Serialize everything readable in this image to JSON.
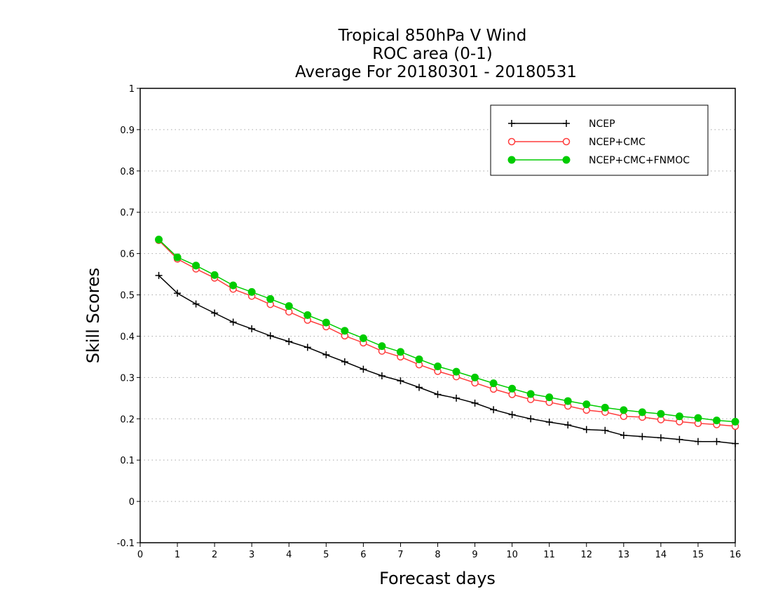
{
  "chart_data": {
    "type": "line",
    "title": [
      "Tropical 850hPa V Wind",
      "ROC area (0-1)",
      "Average For 20180301 - 20180531"
    ],
    "xlabel": "Forecast days",
    "ylabel": "Skill Scores",
    "xlim": [
      0,
      16
    ],
    "ylim": [
      -0.1,
      1
    ],
    "xticks": [
      0,
      1,
      2,
      3,
      4,
      5,
      6,
      7,
      8,
      9,
      10,
      11,
      12,
      13,
      14,
      15,
      16
    ],
    "yticks": [
      -0.1,
      0,
      0.1,
      0.2,
      0.3,
      0.4,
      0.5,
      0.6,
      0.7,
      0.8,
      0.9,
      1
    ],
    "ytick_labels": [
      "-0.1",
      "0",
      "0.1",
      "0.2",
      "0.3",
      "0.4",
      "0.5",
      "0.6",
      "0.7",
      "0.8",
      "0.9",
      "1"
    ],
    "grid": "horizontal dotted",
    "legend_position": "top-right",
    "x": [
      0.5,
      1,
      1.5,
      2,
      2.5,
      3,
      3.5,
      4,
      4.5,
      5,
      5.5,
      6,
      6.5,
      7,
      7.5,
      8,
      8.5,
      9,
      9.5,
      10,
      10.5,
      11,
      11.5,
      12,
      12.5,
      13,
      13.5,
      14,
      14.5,
      15,
      15.5,
      16
    ],
    "series": [
      {
        "name": "NCEP",
        "color": "#000000",
        "marker": "plus",
        "values": [
          0.547,
          0.504,
          0.478,
          0.456,
          0.434,
          0.418,
          0.401,
          0.387,
          0.373,
          0.355,
          0.338,
          0.32,
          0.304,
          0.292,
          0.276,
          0.259,
          0.25,
          0.238,
          0.222,
          0.21,
          0.2,
          0.192,
          0.185,
          0.174,
          0.172,
          0.16,
          0.157,
          0.154,
          0.15,
          0.145,
          0.145,
          0.14
        ]
      },
      {
        "name": "NCEP+CMC",
        "color": "#ff3c3c",
        "marker": "open-circle",
        "values": [
          0.632,
          0.587,
          0.563,
          0.541,
          0.514,
          0.497,
          0.477,
          0.459,
          0.439,
          0.423,
          0.401,
          0.384,
          0.364,
          0.35,
          0.331,
          0.315,
          0.302,
          0.287,
          0.272,
          0.259,
          0.247,
          0.24,
          0.231,
          0.221,
          0.216,
          0.206,
          0.204,
          0.198,
          0.193,
          0.189,
          0.186,
          0.182
        ]
      },
      {
        "name": "NCEP+CMC+FNMOC",
        "color": "#00cc00",
        "marker": "filled-circle",
        "values": [
          0.634,
          0.591,
          0.571,
          0.548,
          0.523,
          0.507,
          0.49,
          0.473,
          0.451,
          0.433,
          0.413,
          0.395,
          0.376,
          0.362,
          0.344,
          0.327,
          0.314,
          0.3,
          0.286,
          0.273,
          0.26,
          0.252,
          0.243,
          0.235,
          0.227,
          0.221,
          0.216,
          0.212,
          0.206,
          0.202,
          0.196,
          0.193
        ]
      }
    ]
  }
}
